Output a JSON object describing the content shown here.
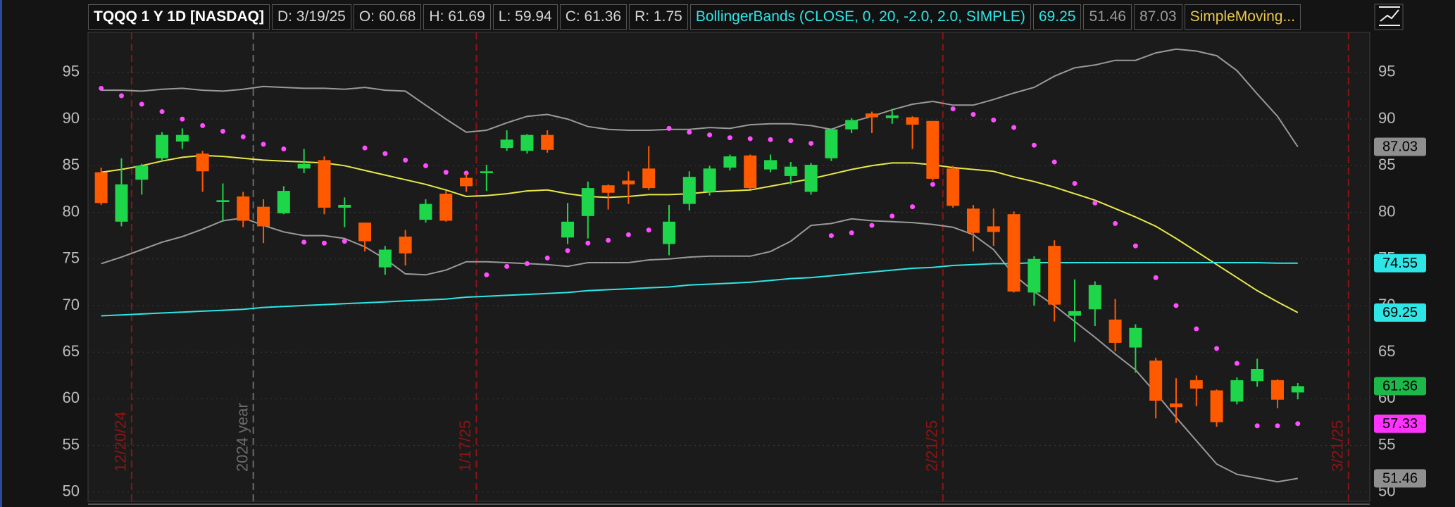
{
  "header": {
    "title": "TQQQ 1 Y 1D [NASDAQ]",
    "items": [
      {
        "text": "D: 3/19/25",
        "color": "#d6d6d6"
      },
      {
        "text": "O: 60.68",
        "color": "#d6d6d6"
      },
      {
        "text": "H: 61.69",
        "color": "#d6d6d6"
      },
      {
        "text": "L: 59.94",
        "color": "#d6d6d6"
      },
      {
        "text": "C: 61.36",
        "color": "#d6d6d6"
      },
      {
        "text": "R: 1.75",
        "color": "#d6d6d6"
      },
      {
        "text": "BollingerBands (CLOSE, 0, 20, -2.0, 2.0, SIMPLE)",
        "color": "#2ee6e6"
      },
      {
        "text": "69.25",
        "color": "#2ee6e6"
      },
      {
        "text": "51.46",
        "color": "#9a9a9a"
      },
      {
        "text": "87.03",
        "color": "#9a9a9a"
      },
      {
        "text": "SimpleMoving...",
        "color": "#e8c84a"
      }
    ]
  },
  "chart_data": {
    "type": "candlestick",
    "categories": [
      null,
      "12/20/24",
      null,
      null,
      null,
      null,
      null,
      "2024 year",
      null,
      null,
      null,
      null,
      null,
      null,
      null,
      null,
      null,
      null,
      "1/17/25",
      null,
      null,
      null,
      null,
      null,
      null,
      null,
      null,
      null,
      null,
      null,
      null,
      null,
      null,
      null,
      null,
      null,
      null,
      null,
      null,
      null,
      null,
      "2/21/25",
      null,
      null,
      null,
      null,
      null,
      null,
      null,
      null,
      null,
      null,
      null,
      null,
      null,
      null,
      null,
      null,
      null,
      null,
      null,
      "3/21/25"
    ],
    "year_break_index": 7,
    "date_line_color": "#8b1515",
    "year_line_color": "#6a6a6a",
    "open": [
      84.3,
      79.0,
      83.5,
      85.8,
      87.6,
      86.3,
      81.1,
      81.7,
      80.6,
      79.9,
      84.7,
      85.6,
      80.5,
      78.9,
      74.1,
      77.4,
      79.2,
      82.0,
      83.7,
      84.2,
      86.9,
      86.6,
      88.3,
      77.3,
      79.6,
      82.9,
      83.4,
      84.7,
      76.6,
      80.9,
      82.2,
      84.8,
      86.1,
      84.6,
      83.9,
      82.2,
      85.8,
      88.9,
      90.6,
      90.1,
      90.2,
      89.8,
      84.7,
      80.4,
      78.5,
      79.8,
      71.4,
      76.4,
      68.9,
      69.6,
      68.5,
      65.5,
      64.1,
      59.5,
      62.0,
      60.9,
      59.7,
      61.9,
      62.0,
      60.68,
      null,
      null
    ],
    "high": [
      84.8,
      85.8,
      85.2,
      88.6,
      89.0,
      86.6,
      83.1,
      82.2,
      81.4,
      82.8,
      86.8,
      86.0,
      81.6,
      78.9,
      76.4,
      78.1,
      81.4,
      82.3,
      84.2,
      85.1,
      88.8,
      88.4,
      88.8,
      81.0,
      83.3,
      83.0,
      84.4,
      87.1,
      80.8,
      84.4,
      85.0,
      86.2,
      86.2,
      86.2,
      85.4,
      85.3,
      89.0,
      90.1,
      90.8,
      91.1,
      90.3,
      89.8,
      85.0,
      80.8,
      80.4,
      80.1,
      75.3,
      77.0,
      72.8,
      72.6,
      70.7,
      68.0,
      64.4,
      62.2,
      62.5,
      61.0,
      62.3,
      64.3,
      62.1,
      61.69,
      null,
      null
    ],
    "low": [
      80.8,
      78.5,
      81.9,
      85.5,
      86.8,
      82.2,
      79.0,
      78.4,
      76.7,
      79.8,
      84.2,
      79.8,
      78.4,
      75.8,
      73.3,
      74.3,
      78.9,
      79.0,
      82.2,
      82.3,
      86.6,
      86.3,
      86.4,
      76.6,
      77.2,
      80.3,
      80.9,
      82.4,
      75.4,
      80.2,
      81.8,
      84.5,
      82.5,
      84.3,
      83.0,
      81.9,
      85.5,
      88.5,
      88.5,
      89.5,
      86.8,
      83.4,
      80.5,
      75.8,
      76.4,
      71.4,
      70.0,
      68.3,
      66.1,
      67.8,
      65.1,
      62.8,
      57.9,
      57.4,
      59.2,
      57.0,
      59.4,
      61.3,
      59.0,
      59.94,
      null,
      null
    ],
    "close": [
      81.0,
      83.0,
      85.0,
      88.3,
      88.3,
      84.4,
      81.3,
      79.1,
      78.5,
      82.3,
      85.2,
      80.5,
      80.8,
      76.9,
      76.0,
      75.6,
      80.9,
      79.1,
      82.8,
      84.4,
      87.8,
      88.3,
      86.7,
      79.0,
      82.6,
      82.1,
      83.0,
      82.6,
      79.0,
      83.8,
      84.7,
      86.0,
      82.6,
      85.6,
      84.9,
      85.1,
      88.9,
      89.9,
      90.2,
      90.4,
      89.4,
      83.6,
      80.7,
      77.8,
      77.9,
      71.5,
      75.0,
      70.1,
      69.4,
      72.2,
      66.0,
      67.6,
      59.8,
      59.1,
      61.1,
      57.5,
      62.0,
      63.2,
      59.9,
      61.36,
      null,
      null
    ],
    "up_color": "#1ed64a",
    "down_color": "#ff5a00",
    "close_tag_color": "#1db84a",
    "series": [
      {
        "style": "line",
        "color": "#9a9a9a",
        "tag_color": "#8f8f8f",
        "values": [
          93.1,
          93.1,
          93.0,
          93.2,
          93.3,
          93.1,
          93.0,
          93.2,
          93.5,
          93.4,
          93.3,
          93.3,
          93.2,
          93.4,
          93.1,
          93.0,
          91.5,
          90.0,
          88.6,
          88.8,
          89.6,
          90.3,
          90.5,
          90.0,
          89.2,
          88.9,
          88.8,
          88.8,
          88.9,
          88.9,
          89.1,
          89.0,
          89.4,
          89.5,
          89.5,
          89.3,
          88.9,
          89.7,
          90.3,
          91.0,
          91.6,
          91.9,
          91.5,
          91.5,
          92.1,
          92.8,
          93.4,
          94.6,
          95.5,
          95.8,
          96.3,
          96.3,
          97.1,
          97.5,
          97.3,
          96.8,
          95.2,
          92.7,
          90.3,
          87.03,
          null,
          null
        ]
      },
      {
        "style": "line",
        "color": "#e8e84a",
        "tag_color": "#2ee6e6",
        "values": [
          84.3,
          84.6,
          85.0,
          85.5,
          85.9,
          86.1,
          86.0,
          85.8,
          85.6,
          85.5,
          85.4,
          85.3,
          85.0,
          84.5,
          84.0,
          83.5,
          83.0,
          82.4,
          81.7,
          81.8,
          82.0,
          82.3,
          82.4,
          82.0,
          81.7,
          81.6,
          81.7,
          81.9,
          81.9,
          82.0,
          82.2,
          82.3,
          82.4,
          82.8,
          83.2,
          83.6,
          84.1,
          84.6,
          85.0,
          85.3,
          85.3,
          85.1,
          84.8,
          84.6,
          84.4,
          83.8,
          83.3,
          82.7,
          82.0,
          81.3,
          80.4,
          79.5,
          78.5,
          77.2,
          75.8,
          74.4,
          73.0,
          71.6,
          70.4,
          69.25,
          null,
          null
        ]
      },
      {
        "style": "line",
        "color": "#9a9a9a",
        "tag_color": "#8f8f8f",
        "values": [
          74.5,
          75.2,
          76.0,
          76.8,
          77.4,
          78.2,
          79.1,
          79.4,
          78.6,
          77.9,
          77.5,
          77.5,
          77.2,
          76.3,
          75.0,
          73.4,
          73.3,
          73.8,
          74.7,
          74.7,
          74.6,
          74.5,
          74.4,
          74.2,
          74.6,
          74.6,
          74.6,
          74.9,
          75.0,
          75.2,
          75.3,
          75.3,
          75.3,
          75.8,
          76.9,
          78.6,
          78.8,
          79.3,
          79.1,
          79.0,
          78.9,
          78.7,
          78.4,
          77.6,
          76.0,
          73.3,
          71.5,
          70.0,
          68.3,
          66.6,
          64.8,
          63.1,
          60.6,
          58.0,
          55.5,
          53.0,
          51.9,
          51.5,
          51.1,
          51.46,
          null,
          null
        ]
      },
      {
        "style": "line",
        "color": "#2ee6e6",
        "tag_color": "#2ee6e6",
        "values": [
          68.9,
          69.0,
          69.1,
          69.2,
          69.3,
          69.4,
          69.5,
          69.6,
          69.8,
          69.9,
          70.0,
          70.1,
          70.2,
          70.3,
          70.4,
          70.5,
          70.6,
          70.7,
          70.9,
          71.0,
          71.1,
          71.2,
          71.3,
          71.4,
          71.6,
          71.7,
          71.8,
          71.9,
          72.0,
          72.2,
          72.3,
          72.4,
          72.5,
          72.7,
          72.9,
          73.0,
          73.2,
          73.4,
          73.6,
          73.8,
          74.0,
          74.1,
          74.3,
          74.4,
          74.5,
          74.5,
          74.6,
          74.6,
          74.6,
          74.6,
          74.6,
          74.6,
          74.6,
          74.6,
          74.6,
          74.6,
          74.6,
          74.6,
          74.55,
          74.55,
          null,
          null
        ]
      },
      {
        "style": "dots",
        "color": "#ff4dff",
        "tag_color": "#ff33ff",
        "values": [
          93.3,
          92.5,
          91.6,
          90.8,
          90.0,
          89.3,
          88.7,
          88.1,
          87.3,
          86.8,
          76.8,
          76.7,
          76.9,
          86.9,
          86.3,
          85.6,
          85.0,
          84.3,
          84.2,
          73.3,
          74.2,
          74.5,
          75.1,
          75.9,
          76.7,
          77.0,
          77.6,
          78.1,
          89.0,
          88.6,
          88.3,
          88.0,
          87.9,
          87.8,
          87.7,
          87.4,
          77.5,
          77.8,
          78.6,
          79.6,
          80.6,
          83.0,
          91.1,
          90.5,
          89.9,
          89.1,
          87.2,
          85.4,
          83.1,
          81.0,
          78.8,
          76.4,
          73.0,
          70.0,
          67.5,
          65.4,
          63.8,
          57.1,
          57.1,
          57.33,
          null,
          null
        ]
      }
    ],
    "ylim": [
      49,
      99.3
    ],
    "yticks": [
      50,
      55,
      60,
      65,
      70,
      75,
      80,
      85,
      90,
      95
    ],
    "grid": true
  }
}
